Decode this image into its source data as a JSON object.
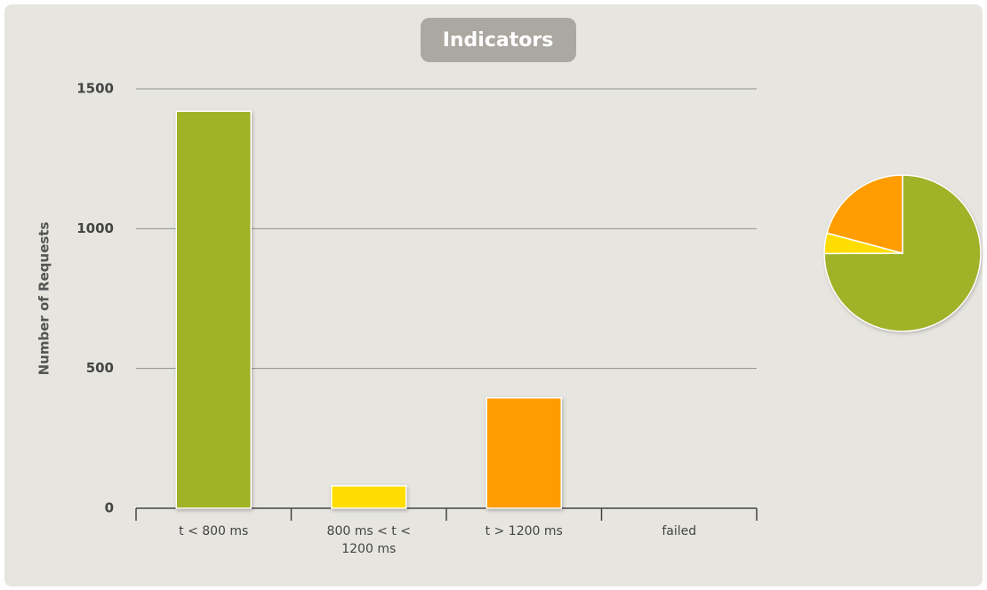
{
  "chart_data": {
    "type": "bar",
    "title": "Indicators",
    "categories": [
      "t < 800 ms",
      "800 ms < t < 1200 ms",
      "t > 1200 ms",
      "failed"
    ],
    "values": [
      1420,
      80,
      395,
      0
    ],
    "colors": [
      "#a0b228",
      "#ffdd00",
      "#ff9d00",
      "#f15b4f"
    ],
    "y_label": "Number of Requests",
    "ylim": [
      0,
      1500
    ],
    "yticks": [
      0,
      500,
      1000,
      1500
    ],
    "grid": true,
    "inset": "pie"
  }
}
